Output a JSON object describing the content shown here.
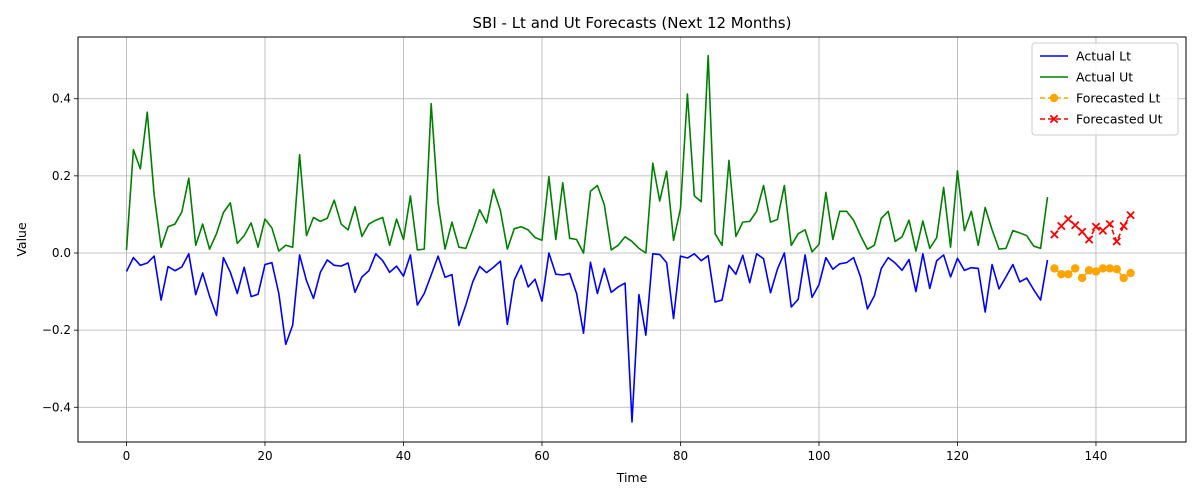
{
  "chart_data": {
    "type": "line",
    "title": "SBI - Lt and Ut Forecasts (Next 12 Months)",
    "xlabel": "Time",
    "ylabel": "Value",
    "xlim": [
      -7,
      153
    ],
    "ylim": [
      -0.49,
      0.56
    ],
    "xticks": [
      0,
      20,
      40,
      60,
      80,
      100,
      120,
      140
    ],
    "yticks": [
      -0.4,
      -0.2,
      0.0,
      0.2,
      0.4
    ],
    "xtick_labels": [
      "0",
      "20",
      "40",
      "60",
      "80",
      "100",
      "120",
      "140"
    ],
    "ytick_labels": [
      "−0.4",
      "−0.2",
      "0.0",
      "0.2",
      "0.4"
    ],
    "grid": true,
    "legend_position": "top-right",
    "series": [
      {
        "name": "Actual Lt",
        "color": "#0000ff",
        "style": "solid",
        "marker": "none",
        "x_start": 0,
        "values": [
          -0.048,
          -0.012,
          -0.032,
          -0.026,
          -0.008,
          -0.122,
          -0.035,
          -0.046,
          -0.036,
          -0.002,
          -0.108,
          -0.052,
          -0.112,
          -0.162,
          -0.012,
          -0.05,
          -0.105,
          -0.037,
          -0.113,
          -0.107,
          -0.03,
          -0.025,
          -0.105,
          -0.237,
          -0.187,
          -0.005,
          -0.072,
          -0.118,
          -0.05,
          -0.018,
          -0.032,
          -0.034,
          -0.026,
          -0.102,
          -0.062,
          -0.046,
          -0.002,
          -0.02,
          -0.05,
          -0.034,
          -0.06,
          -0.005,
          -0.135,
          -0.105,
          -0.057,
          -0.008,
          -0.063,
          -0.056,
          -0.188,
          -0.135,
          -0.075,
          -0.035,
          -0.051,
          -0.037,
          -0.021,
          -0.185,
          -0.07,
          -0.032,
          -0.088,
          -0.068,
          -0.125,
          0.0,
          -0.055,
          -0.057,
          -0.053,
          -0.105,
          -0.208,
          -0.024,
          -0.105,
          -0.04,
          -0.102,
          -0.088,
          -0.078,
          -0.438,
          -0.108,
          -0.213,
          -0.002,
          -0.004,
          -0.025,
          -0.17,
          -0.008,
          -0.013,
          -0.002,
          -0.02,
          -0.007,
          -0.127,
          -0.122,
          -0.032,
          -0.055,
          -0.006,
          -0.077,
          -0.002,
          -0.015,
          -0.103,
          -0.042,
          0.0,
          -0.14,
          -0.12,
          -0.005,
          -0.115,
          -0.082,
          -0.012,
          -0.042,
          -0.028,
          -0.025,
          -0.012,
          -0.062,
          -0.145,
          -0.111,
          -0.04,
          -0.012,
          -0.026,
          -0.045,
          -0.017,
          -0.1,
          -0.002,
          -0.092,
          -0.02,
          -0.005,
          -0.062,
          -0.014,
          -0.045,
          -0.038,
          -0.04,
          -0.153,
          -0.03,
          -0.093,
          -0.062,
          -0.03,
          -0.075,
          -0.065,
          -0.095,
          -0.122,
          -0.018
        ]
      },
      {
        "name": "Actual Ut",
        "color": "#008000",
        "style": "solid",
        "marker": "none",
        "x_start": 0,
        "values": [
          0.008,
          0.268,
          0.218,
          0.365,
          0.15,
          0.015,
          0.068,
          0.075,
          0.107,
          0.194,
          0.02,
          0.075,
          0.01,
          0.05,
          0.105,
          0.13,
          0.025,
          0.045,
          0.078,
          0.015,
          0.088,
          0.065,
          0.005,
          0.02,
          0.015,
          0.255,
          0.045,
          0.092,
          0.082,
          0.09,
          0.137,
          0.075,
          0.06,
          0.12,
          0.043,
          0.075,
          0.085,
          0.092,
          0.02,
          0.088,
          0.035,
          0.148,
          0.008,
          0.01,
          0.387,
          0.13,
          0.01,
          0.08,
          0.015,
          0.012,
          0.06,
          0.112,
          0.078,
          0.165,
          0.11,
          0.01,
          0.063,
          0.068,
          0.06,
          0.04,
          0.033,
          0.198,
          0.035,
          0.182,
          0.038,
          0.035,
          0.0,
          0.16,
          0.175,
          0.125,
          0.008,
          0.02,
          0.042,
          0.03,
          0.012,
          0.0,
          0.233,
          0.135,
          0.212,
          0.033,
          0.115,
          0.412,
          0.148,
          0.133,
          0.512,
          0.05,
          0.02,
          0.24,
          0.043,
          0.08,
          0.082,
          0.108,
          0.175,
          0.08,
          0.087,
          0.175,
          0.02,
          0.05,
          0.06,
          0.003,
          0.022,
          0.157,
          0.035,
          0.108,
          0.108,
          0.085,
          0.045,
          0.01,
          0.02,
          0.09,
          0.108,
          0.03,
          0.042,
          0.085,
          0.005,
          0.083,
          0.012,
          0.04,
          0.17,
          0.015,
          0.213,
          0.058,
          0.108,
          0.02,
          0.118,
          0.06,
          0.01,
          0.012,
          0.058,
          0.052,
          0.045,
          0.018,
          0.012,
          0.145
        ]
      },
      {
        "name": "Forecasted Lt",
        "color": "#ffa500",
        "style": "dashed",
        "marker": "circle",
        "x_start": 134,
        "values": [
          -0.04,
          -0.055,
          -0.055,
          -0.04,
          -0.065,
          -0.045,
          -0.048,
          -0.04,
          -0.04,
          -0.042,
          -0.065,
          -0.052
        ]
      },
      {
        "name": "Forecasted Ut",
        "color": "#ff0000",
        "style": "dashed",
        "marker": "x",
        "x_start": 134,
        "values": [
          0.048,
          0.07,
          0.088,
          0.072,
          0.055,
          0.035,
          0.068,
          0.058,
          0.075,
          0.03,
          0.07,
          0.098
        ]
      }
    ]
  }
}
